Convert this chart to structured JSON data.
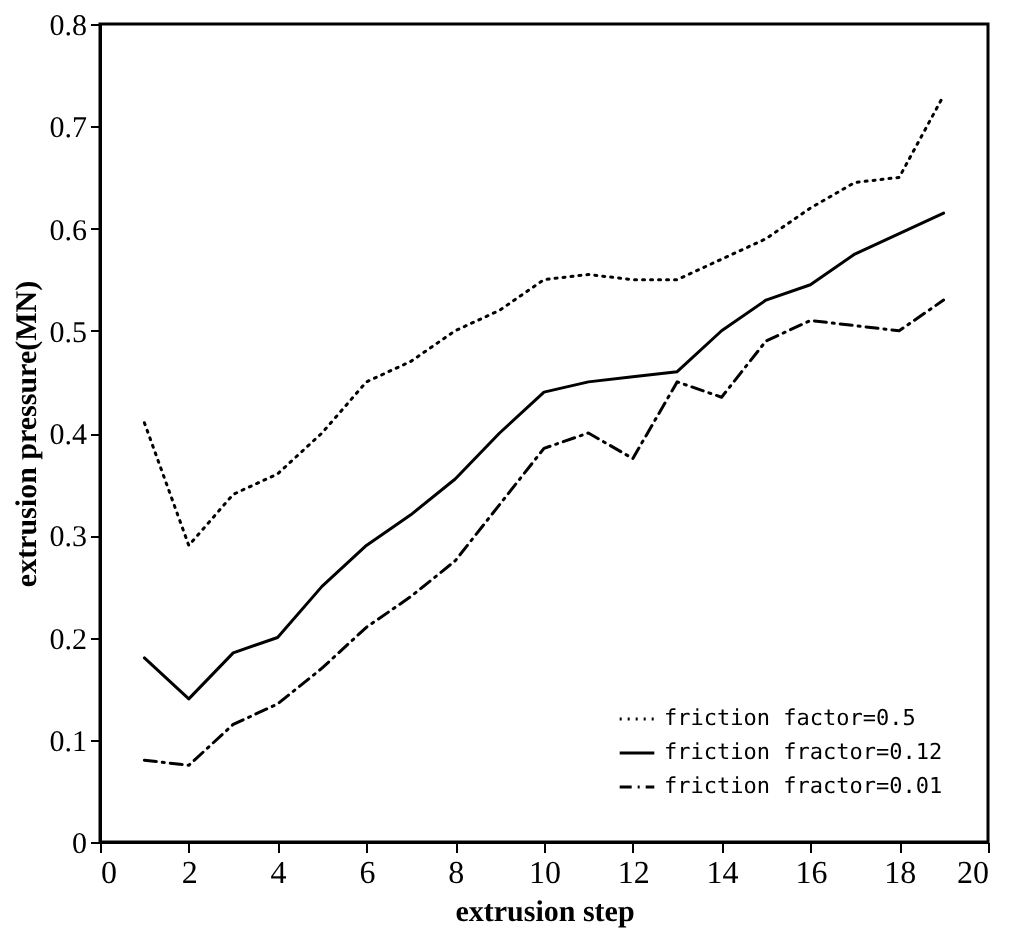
{
  "chart_data": {
    "type": "line",
    "xlabel": "extrusion step",
    "ylabel": "extrusion pressure(MN)",
    "x": [
      1,
      2,
      3,
      4,
      5,
      6,
      7,
      8,
      9,
      10,
      11,
      12,
      13,
      14,
      15,
      16,
      17,
      18,
      19
    ],
    "series": [
      {
        "name": "friction factor=0.5",
        "color": "#000000",
        "line_style": "dotted",
        "values": [
          0.41,
          0.29,
          0.34,
          0.36,
          0.4,
          0.45,
          0.47,
          0.5,
          0.52,
          0.55,
          0.555,
          0.55,
          0.55,
          0.57,
          0.59,
          0.62,
          0.645,
          0.65,
          0.73
        ]
      },
      {
        "name": "friction fractor=0.12",
        "color": "#000000",
        "line_style": "solid",
        "values": [
          0.18,
          0.14,
          0.185,
          0.2,
          0.25,
          0.29,
          0.32,
          0.355,
          0.4,
          0.44,
          0.45,
          0.455,
          0.46,
          0.5,
          0.53,
          0.545,
          0.575,
          0.595,
          0.615
        ]
      },
      {
        "name": "friction fractor=0.01",
        "color": "#000000",
        "line_style": "dashdot",
        "values": [
          0.08,
          0.075,
          0.115,
          0.135,
          0.17,
          0.21,
          0.24,
          0.275,
          0.33,
          0.385,
          0.4,
          0.375,
          0.45,
          0.435,
          0.49,
          0.51,
          0.505,
          0.5,
          0.53
        ]
      }
    ],
    "xlim": [
      0,
      20
    ],
    "xticks": [
      0,
      2,
      4,
      6,
      8,
      10,
      12,
      14,
      16,
      18,
      20
    ],
    "ylim": [
      0,
      0.8
    ],
    "yticks": [
      0,
      0.1,
      0.2,
      0.3,
      0.4,
      0.5,
      0.6,
      0.7,
      0.8
    ],
    "grid": false,
    "legend": "bottom right",
    "marker": "none"
  }
}
